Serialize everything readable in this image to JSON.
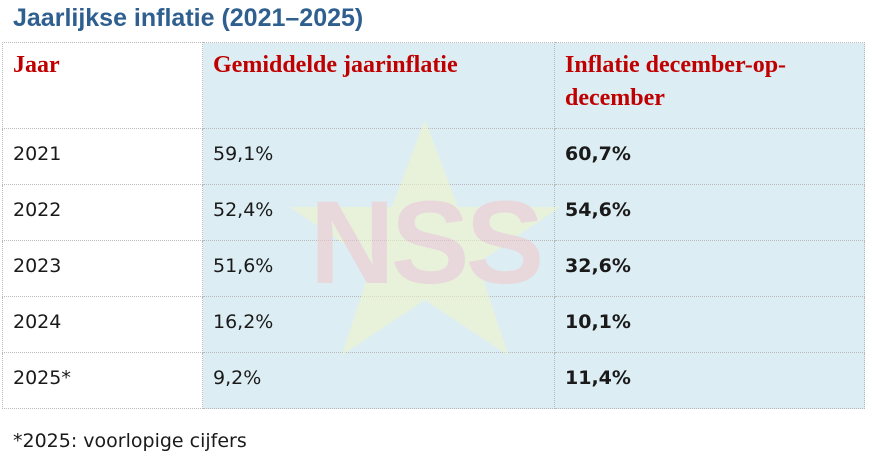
{
  "title": "Jaarlijkse inflatie (2021–2025)",
  "table": {
    "headers": [
      "Jaar",
      "Gemiddelde jaarinflatie",
      "Inflatie december-op-december"
    ],
    "rows": [
      {
        "year": "2021",
        "avg": "59,1%",
        "dec": "60,7%"
      },
      {
        "year": "2022",
        "avg": "52,4%",
        "dec": "54,6%"
      },
      {
        "year": "2023",
        "avg": "51,6%",
        "dec": "32,6%"
      },
      {
        "year": "2024",
        "avg": "16,2%",
        "dec": "10,1%"
      },
      {
        "year": "2025*",
        "avg": "9,2%",
        "dec": "11,4%"
      }
    ]
  },
  "watermark": {
    "text": "NSS",
    "icon": "star-logo-icon"
  },
  "footnote": "*2025: voorlopige cijfers",
  "colors": {
    "title": "#2e5f8f",
    "header_text": "#c00000",
    "shaded_cell": "#dcedf3"
  }
}
